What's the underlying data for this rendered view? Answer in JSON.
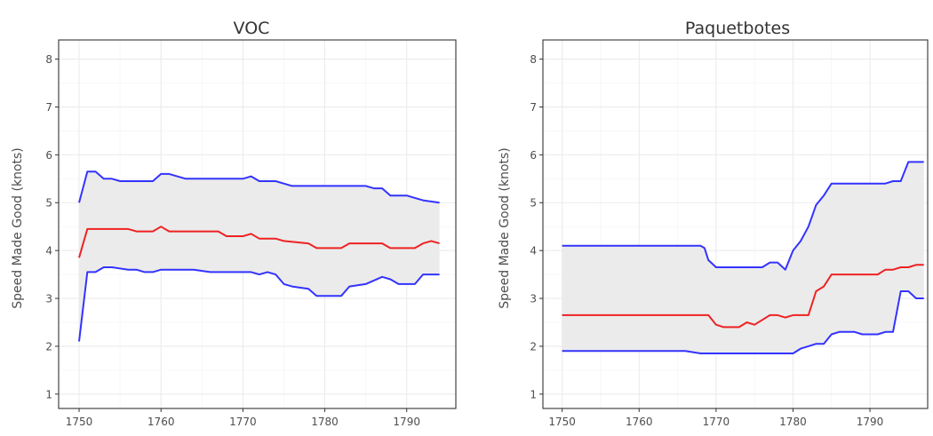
{
  "chart_data": [
    {
      "type": "line",
      "title": "VOC",
      "xlabel": "",
      "ylabel": "Speed Made Good (knots)",
      "xlim": [
        1747.5,
        1796
      ],
      "ylim": [
        0.7,
        8.4
      ],
      "x_ticks": [
        1750,
        1760,
        1770,
        1780,
        1790
      ],
      "y_ticks": [
        1,
        2,
        3,
        4,
        5,
        6,
        7,
        8
      ],
      "grid": true,
      "legend": "none",
      "band_fill": "#ebebeb",
      "series": [
        {
          "color": "#3333ff",
          "points": [
            [
              1750,
              5.0
            ],
            [
              1751,
              5.65
            ],
            [
              1752,
              5.65
            ],
            [
              1753,
              5.5
            ],
            [
              1754,
              5.5
            ],
            [
              1755,
              5.45
            ],
            [
              1756,
              5.45
            ],
            [
              1759,
              5.45
            ],
            [
              1760,
              5.6
            ],
            [
              1761,
              5.6
            ],
            [
              1763,
              5.5
            ],
            [
              1770,
              5.5
            ],
            [
              1771,
              5.55
            ],
            [
              1772,
              5.45
            ],
            [
              1774,
              5.45
            ],
            [
              1776,
              5.35
            ],
            [
              1785,
              5.35
            ],
            [
              1786,
              5.3
            ],
            [
              1787,
              5.3
            ],
            [
              1788,
              5.15
            ],
            [
              1790,
              5.15
            ],
            [
              1791,
              5.1
            ],
            [
              1792,
              5.05
            ],
            [
              1794,
              5.0
            ]
          ]
        },
        {
          "color": "#ee2222",
          "points": [
            [
              1750,
              3.85
            ],
            [
              1751,
              4.45
            ],
            [
              1752,
              4.45
            ],
            [
              1756,
              4.45
            ],
            [
              1757,
              4.4
            ],
            [
              1759,
              4.4
            ],
            [
              1760,
              4.5
            ],
            [
              1761,
              4.4
            ],
            [
              1767,
              4.4
            ],
            [
              1768,
              4.3
            ],
            [
              1770,
              4.3
            ],
            [
              1771,
              4.35
            ],
            [
              1772,
              4.25
            ],
            [
              1774,
              4.25
            ],
            [
              1775,
              4.2
            ],
            [
              1778,
              4.15
            ],
            [
              1779,
              4.05
            ],
            [
              1782,
              4.05
            ],
            [
              1783,
              4.15
            ],
            [
              1787,
              4.15
            ],
            [
              1788,
              4.05
            ],
            [
              1791,
              4.05
            ],
            [
              1792,
              4.15
            ],
            [
              1793,
              4.2
            ],
            [
              1794,
              4.15
            ]
          ]
        },
        {
          "color": "#3333ff",
          "points": [
            [
              1750,
              2.1
            ],
            [
              1751,
              3.55
            ],
            [
              1752,
              3.55
            ],
            [
              1753,
              3.65
            ],
            [
              1754,
              3.65
            ],
            [
              1756,
              3.6
            ],
            [
              1757,
              3.6
            ],
            [
              1758,
              3.55
            ],
            [
              1759,
              3.55
            ],
            [
              1760,
              3.6
            ],
            [
              1764,
              3.6
            ],
            [
              1766,
              3.55
            ],
            [
              1771,
              3.55
            ],
            [
              1772,
              3.5
            ],
            [
              1773,
              3.55
            ],
            [
              1774,
              3.5
            ],
            [
              1775,
              3.3
            ],
            [
              1776,
              3.25
            ],
            [
              1778,
              3.2
            ],
            [
              1779,
              3.05
            ],
            [
              1782,
              3.05
            ],
            [
              1783,
              3.25
            ],
            [
              1785,
              3.3
            ],
            [
              1787,
              3.45
            ],
            [
              1788,
              3.4
            ],
            [
              1789,
              3.3
            ],
            [
              1791,
              3.3
            ],
            [
              1792,
              3.5
            ],
            [
              1794,
              3.5
            ]
          ]
        }
      ]
    },
    {
      "type": "line",
      "title": "Paquetbotes",
      "xlabel": "",
      "ylabel": "Speed Made Good (knots)",
      "xlim": [
        1747.5,
        1797.5
      ],
      "ylim": [
        0.7,
        8.4
      ],
      "x_ticks": [
        1750,
        1760,
        1770,
        1780,
        1790
      ],
      "y_ticks": [
        1,
        2,
        3,
        4,
        5,
        6,
        7,
        8
      ],
      "grid": true,
      "legend": "none",
      "band_fill": "#ebebeb",
      "series": [
        {
          "color": "#3333ff",
          "points": [
            [
              1750,
              4.1
            ],
            [
              1768,
              4.1
            ],
            [
              1768.5,
              4.05
            ],
            [
              1769,
              3.8
            ],
            [
              1770,
              3.65
            ],
            [
              1776,
              3.65
            ],
            [
              1777,
              3.75
            ],
            [
              1778,
              3.75
            ],
            [
              1779,
              3.6
            ],
            [
              1780,
              4.0
            ],
            [
              1781,
              4.2
            ],
            [
              1782,
              4.5
            ],
            [
              1783,
              4.95
            ],
            [
              1784,
              5.15
            ],
            [
              1785,
              5.4
            ],
            [
              1792,
              5.4
            ],
            [
              1793,
              5.45
            ],
            [
              1794,
              5.45
            ],
            [
              1795,
              5.85
            ],
            [
              1797,
              5.85
            ]
          ]
        },
        {
          "color": "#ee2222",
          "points": [
            [
              1750,
              2.65
            ],
            [
              1769,
              2.65
            ],
            [
              1770,
              2.45
            ],
            [
              1771,
              2.4
            ],
            [
              1773,
              2.4
            ],
            [
              1774,
              2.5
            ],
            [
              1775,
              2.45
            ],
            [
              1776,
              2.55
            ],
            [
              1777,
              2.65
            ],
            [
              1778,
              2.65
            ],
            [
              1779,
              2.6
            ],
            [
              1780,
              2.65
            ],
            [
              1782,
              2.65
            ],
            [
              1783,
              3.15
            ],
            [
              1784,
              3.25
            ],
            [
              1785,
              3.5
            ],
            [
              1791,
              3.5
            ],
            [
              1792,
              3.6
            ],
            [
              1793,
              3.6
            ],
            [
              1794,
              3.65
            ],
            [
              1795,
              3.65
            ],
            [
              1796,
              3.7
            ],
            [
              1797,
              3.7
            ]
          ]
        },
        {
          "color": "#3333ff",
          "points": [
            [
              1750,
              1.9
            ],
            [
              1766,
              1.9
            ],
            [
              1768,
              1.85
            ],
            [
              1769,
              1.85
            ],
            [
              1779,
              1.85
            ],
            [
              1780,
              1.85
            ],
            [
              1781,
              1.95
            ],
            [
              1782,
              2.0
            ],
            [
              1783,
              2.05
            ],
            [
              1784,
              2.05
            ],
            [
              1785,
              2.25
            ],
            [
              1786,
              2.3
            ],
            [
              1788,
              2.3
            ],
            [
              1789,
              2.25
            ],
            [
              1791,
              2.25
            ],
            [
              1792,
              2.3
            ],
            [
              1793,
              2.3
            ],
            [
              1794,
              3.15
            ],
            [
              1795,
              3.15
            ],
            [
              1796,
              3.0
            ],
            [
              1797,
              3.0
            ]
          ]
        }
      ]
    }
  ]
}
